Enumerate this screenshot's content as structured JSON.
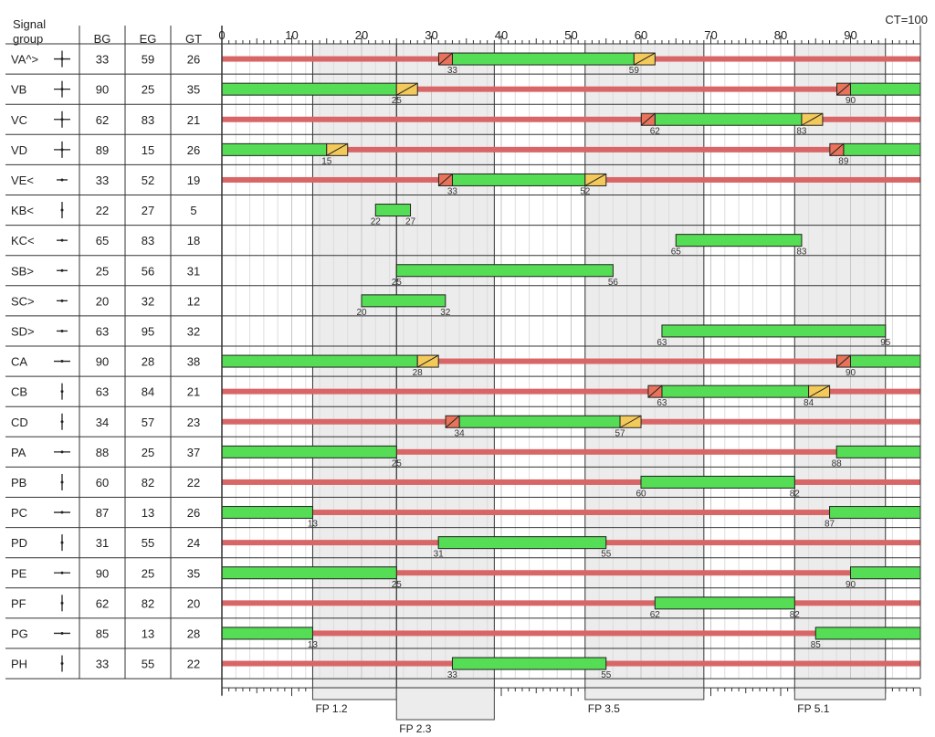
{
  "header": {
    "signal_group": [
      "Signal",
      "group"
    ],
    "bg": "BG",
    "eg": "EG",
    "gt": "GT",
    "cycle": "CT=100"
  },
  "colors": {
    "green": "#55dd55",
    "red": "#d96666",
    "amber": "#f3c95a",
    "redamber": "#e8725a",
    "phase_shade": "#ececec"
  },
  "chart_data": {
    "type": "signal-timing-diagram",
    "cycle_time": 100,
    "xlim": [
      0,
      100
    ],
    "x_ticks": [
      0,
      10,
      20,
      30,
      40,
      50,
      60,
      70,
      80,
      90
    ],
    "grid": true,
    "groups": [
      {
        "name": "VA^>",
        "icon": "arrow-straight-left-right-icon",
        "bg": 33,
        "eg": 59,
        "gt": 26,
        "green": [
          [
            33,
            59
          ]
        ],
        "red_bar": true,
        "redamber": 33,
        "amber": 59
      },
      {
        "name": "VB",
        "icon": "arrow-four-way-icon",
        "bg": 90,
        "eg": 25,
        "gt": 35,
        "green": [
          [
            0,
            25
          ],
          [
            90,
            100
          ]
        ],
        "red_bar": true,
        "redamber": 90,
        "amber": 25
      },
      {
        "name": "VC",
        "icon": "arrow-four-way-icon",
        "bg": 62,
        "eg": 83,
        "gt": 21,
        "green": [
          [
            62,
            83
          ]
        ],
        "red_bar": true,
        "redamber": 62,
        "amber": 83
      },
      {
        "name": "VD",
        "icon": "arrow-four-way-icon",
        "bg": 89,
        "eg": 15,
        "gt": 26,
        "green": [
          [
            0,
            15
          ],
          [
            89,
            100
          ]
        ],
        "red_bar": true,
        "redamber": 89,
        "amber": 15
      },
      {
        "name": "VE<",
        "icon": "arrow-left-turn-icon",
        "bg": 33,
        "eg": 52,
        "gt": 19,
        "green": [
          [
            33,
            52
          ]
        ],
        "red_bar": true,
        "redamber": 33,
        "amber": 52
      },
      {
        "name": "KB<",
        "icon": "arrow-down-icon",
        "bg": 22,
        "eg": 27,
        "gt": 5,
        "green": [
          [
            22,
            27
          ]
        ],
        "red_bar": false
      },
      {
        "name": "KC<",
        "icon": "arrow-left-icon",
        "bg": 65,
        "eg": 83,
        "gt": 18,
        "green": [
          [
            65,
            83
          ]
        ],
        "red_bar": false
      },
      {
        "name": "SB>",
        "icon": "arrow-turn-right-icon",
        "bg": 25,
        "eg": 56,
        "gt": 31,
        "green": [
          [
            25,
            56
          ]
        ],
        "red_bar": false
      },
      {
        "name": "SC>",
        "icon": "arrow-turn-right-icon",
        "bg": 20,
        "eg": 32,
        "gt": 12,
        "green": [
          [
            20,
            32
          ]
        ],
        "red_bar": false
      },
      {
        "name": "SD>",
        "icon": "arrow-turn-down-icon",
        "bg": 63,
        "eg": 95,
        "gt": 32,
        "green": [
          [
            63,
            95
          ]
        ],
        "red_bar": false
      },
      {
        "name": "CA",
        "icon": "arrow-left-right-icon",
        "bg": 90,
        "eg": 28,
        "gt": 38,
        "green": [
          [
            0,
            28
          ],
          [
            90,
            100
          ]
        ],
        "red_bar": true,
        "redamber": 90,
        "amber": 28
      },
      {
        "name": "CB",
        "icon": "arrow-up-icon",
        "bg": 63,
        "eg": 84,
        "gt": 21,
        "green": [
          [
            63,
            84
          ]
        ],
        "red_bar": true,
        "redamber": 63,
        "amber": 84
      },
      {
        "name": "CD",
        "icon": "arrow-down-icon",
        "bg": 34,
        "eg": 57,
        "gt": 23,
        "green": [
          [
            34,
            57
          ]
        ],
        "red_bar": true,
        "redamber": 34,
        "amber": 57
      },
      {
        "name": "PA",
        "icon": "arrow-left-right-icon",
        "bg": 88,
        "eg": 25,
        "gt": 37,
        "green": [
          [
            0,
            25
          ],
          [
            88,
            100
          ]
        ],
        "red_bar": true
      },
      {
        "name": "PB",
        "icon": "arrow-up-down-icon",
        "bg": 60,
        "eg": 82,
        "gt": 22,
        "green": [
          [
            60,
            82
          ]
        ],
        "red_bar": true
      },
      {
        "name": "PC",
        "icon": "arrow-left-right-icon",
        "bg": 87,
        "eg": 13,
        "gt": 26,
        "green": [
          [
            0,
            13
          ],
          [
            87,
            100
          ]
        ],
        "red_bar": true
      },
      {
        "name": "PD",
        "icon": "arrow-up-down-icon",
        "bg": 31,
        "eg": 55,
        "gt": 24,
        "green": [
          [
            31,
            55
          ]
        ],
        "red_bar": true
      },
      {
        "name": "PE",
        "icon": "arrow-left-right-icon",
        "bg": 90,
        "eg": 25,
        "gt": 35,
        "green": [
          [
            0,
            25
          ],
          [
            90,
            100
          ]
        ],
        "red_bar": true
      },
      {
        "name": "PF",
        "icon": "arrow-up-down-icon",
        "bg": 62,
        "eg": 82,
        "gt": 20,
        "green": [
          [
            62,
            82
          ]
        ],
        "red_bar": true
      },
      {
        "name": "PG",
        "icon": "arrow-left-right-icon",
        "bg": 85,
        "eg": 13,
        "gt": 28,
        "green": [
          [
            0,
            13
          ],
          [
            85,
            100
          ]
        ],
        "red_bar": true
      },
      {
        "name": "PH",
        "icon": "arrow-up-down-icon",
        "bg": 33,
        "eg": 55,
        "gt": 22,
        "green": [
          [
            33,
            55
          ]
        ],
        "red_bar": true
      }
    ],
    "fixed_points": [
      {
        "label": "FP 1.2",
        "start": 13,
        "end": 25
      },
      {
        "label": "FP 2.3",
        "start": 25,
        "end": 39
      },
      {
        "label": "FP 3.5",
        "start": 52,
        "end": 69
      },
      {
        "label": "FP 5.1",
        "start": 82,
        "end": 95
      }
    ]
  }
}
